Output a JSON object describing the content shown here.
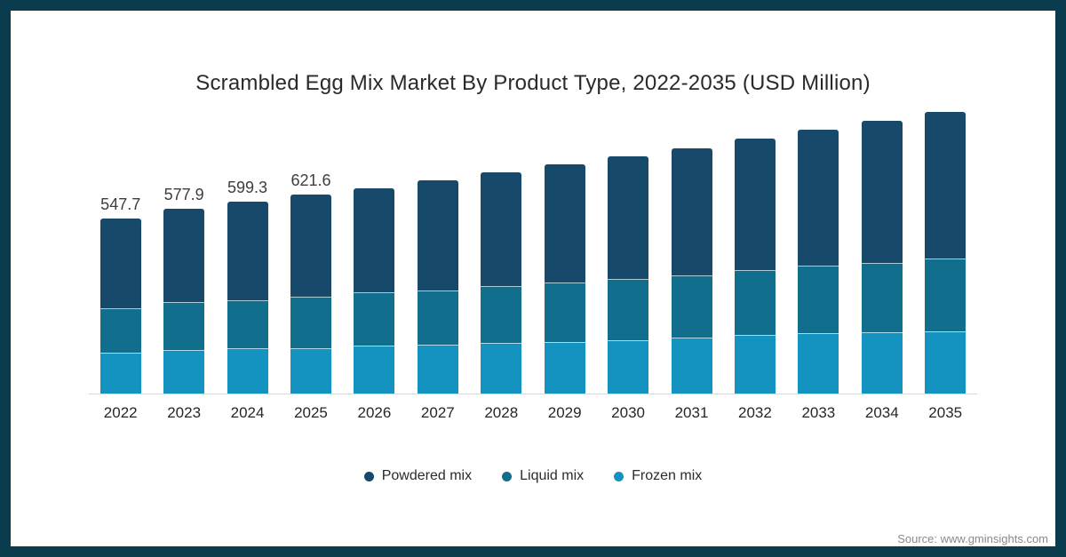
{
  "title": "Scrambled Egg Mix Market By Product Type, 2022-2035 (USD Million)",
  "source": "Source: www.gminsights.com",
  "colors": {
    "frame_border": "#0a3c4e",
    "powdered": "#17496b",
    "liquid": "#116e8c",
    "frozen": "#1593c0",
    "axis_line": "#d8d8d8"
  },
  "legend": {
    "items": [
      {
        "label": "Powdered mix",
        "color": "#17496b"
      },
      {
        "label": "Liquid mix",
        "color": "#116e8c"
      },
      {
        "label": "Frozen mix",
        "color": "#1593c0"
      }
    ]
  },
  "chart_data": {
    "type": "bar",
    "stacked": true,
    "title": "Scrambled Egg Mix Market By Product Type, 2022-2035 (USD Million)",
    "unit": "USD Million",
    "categories": [
      "2022",
      "2023",
      "2024",
      "2025",
      "2026",
      "2027",
      "2028",
      "2029",
      "2030",
      "2031",
      "2032",
      "2033",
      "2034",
      "2035"
    ],
    "series": [
      {
        "name": "Powdered mix",
        "color": "#17496b",
        "values": [
          285,
          294,
          309,
          322,
          330,
          346,
          358,
          373,
          385,
          401,
          413,
          429,
          450,
          461
        ]
      },
      {
        "name": "Liquid mix",
        "color": "#116e8c",
        "values": [
          136,
          150,
          150,
          160,
          165,
          169,
          177,
          184,
          191,
          195,
          204,
          210,
          216,
          229
        ]
      },
      {
        "name": "Frozen mix",
        "color": "#1593c0",
        "values": [
          127,
          134,
          140,
          140,
          148,
          152,
          157,
          160,
          166,
          173,
          181,
          187,
          190,
          193
        ]
      }
    ],
    "totals": [
      547.7,
      577.9,
      599.3,
      621.6,
      643,
      667,
      692,
      717,
      742,
      769,
      798,
      826,
      856,
      883
    ],
    "bar_labels": [
      "547.7",
      "577.9",
      "599.3",
      "621.6",
      "",
      "",
      "",
      "",
      "",
      "",
      "",
      "",
      "",
      ""
    ],
    "y_axis_visible": false,
    "gridlines": false,
    "legend_position": "bottom"
  }
}
